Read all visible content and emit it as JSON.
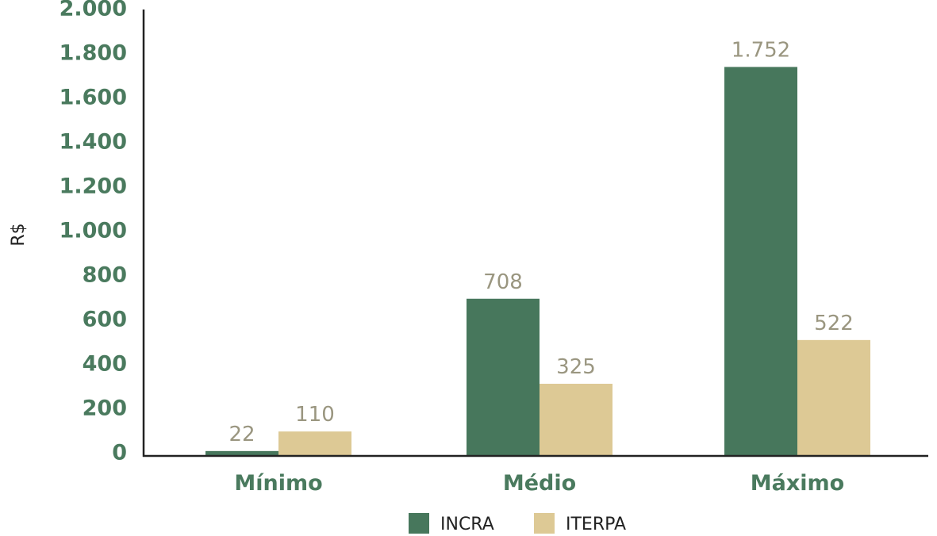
{
  "chart_data": {
    "type": "bar",
    "categories": [
      "Mínimo",
      "Médio",
      "Máximo"
    ],
    "series": [
      {
        "name": "INCRA",
        "values": [
          22,
          708,
          1752
        ],
        "labels": [
          "22",
          "708",
          "1.752"
        ],
        "color": "#47775c"
      },
      {
        "name": "ITERPA",
        "values": [
          110,
          325,
          522
        ],
        "labels": [
          "110",
          "325",
          "522"
        ],
        "color": "#ddc995"
      }
    ],
    "ylabel": "R$",
    "xlabel": "",
    "ylim": [
      0,
      2000
    ],
    "yticks": [
      0,
      200,
      400,
      600,
      800,
      1000,
      1200,
      1400,
      1600,
      1800,
      2000
    ],
    "ytick_labels": [
      "0",
      "200",
      "400",
      "600",
      "800",
      "1.000",
      "1.200",
      "1.400",
      "1.600",
      "1.800",
      "2.000"
    ],
    "grid": false,
    "legend": "bottom-center"
  }
}
